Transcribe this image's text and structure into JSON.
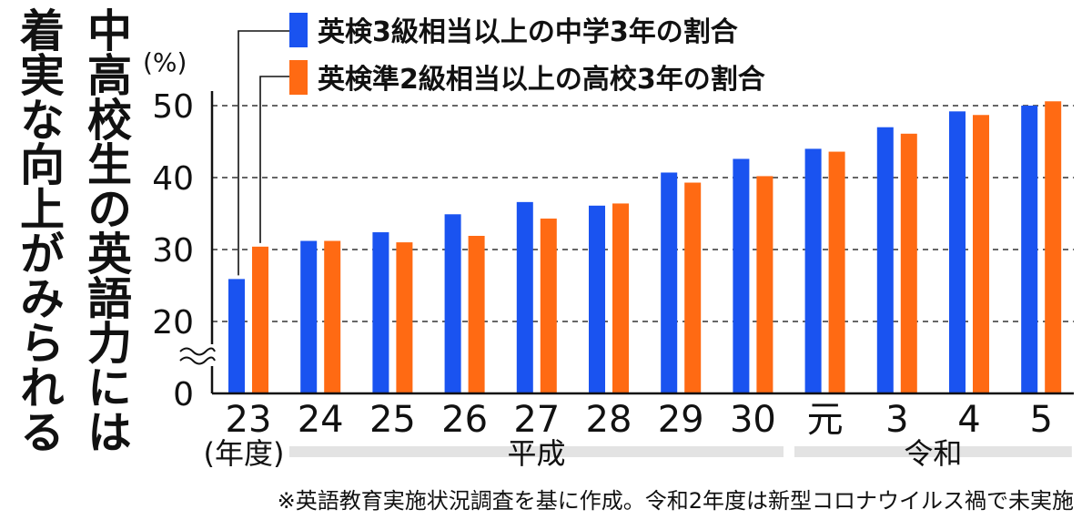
{
  "title": {
    "line1": "中高校生の英語力には",
    "line2": "着実な向上がみられる"
  },
  "chart_data": {
    "type": "bar",
    "unit_label": "(%)",
    "categories": [
      "23",
      "24",
      "25",
      "26",
      "27",
      "28",
      "29",
      "30",
      "元",
      "3",
      "4",
      "5"
    ],
    "x_unit_label": "(年度)",
    "eras": [
      {
        "label": "平成",
        "categories": [
          "23",
          "24",
          "25",
          "26",
          "27",
          "28",
          "29",
          "30"
        ]
      },
      {
        "label": "令和",
        "categories": [
          "元",
          "3",
          "4",
          "5"
        ]
      }
    ],
    "series": [
      {
        "name": "英検3級相当以上の中学3年の割合",
        "color": "#1a53f0",
        "values": [
          25.9,
          31.2,
          32.4,
          34.9,
          36.6,
          36.1,
          40.7,
          42.6,
          44.0,
          47.0,
          49.2,
          50.0
        ]
      },
      {
        "name": "英検準2級相当以上の高校3年の割合",
        "color": "#ff6a13",
        "values": [
          30.4,
          31.2,
          31.0,
          31.9,
          34.3,
          36.4,
          39.3,
          40.2,
          43.6,
          46.1,
          48.7,
          50.6
        ]
      }
    ],
    "ylim": [
      20,
      50
    ],
    "yticks": [
      50,
      40,
      30,
      20,
      0
    ],
    "axis_break": true,
    "grid": "dashed",
    "legend_position": "top",
    "note": "※英語教育実施状況調査を基に作成。令和2年度は新型コロナウイルス禍で未実施"
  }
}
